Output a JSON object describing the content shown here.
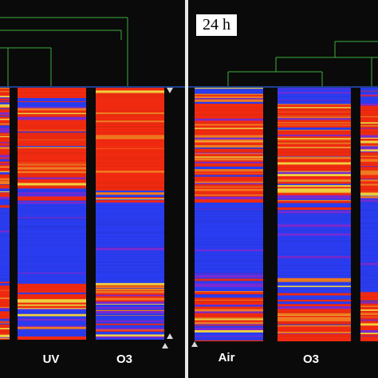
{
  "left_panel": {
    "lanes": [
      {
        "name": "",
        "profile": "partial_left"
      },
      {
        "name": "UV",
        "profile": "uv"
      },
      {
        "name": "O3",
        "profile": "o3_left"
      }
    ]
  },
  "right_panel": {
    "time_label": "24 h",
    "lanes": [
      {
        "name": "Air",
        "profile": "air"
      },
      {
        "name": "O3",
        "profile": "o3_right"
      },
      {
        "name": "",
        "profile": "partial_right"
      }
    ]
  },
  "colors": {
    "red": "#f02a10",
    "blue": "#2a3cf0",
    "orange": "#f07a20",
    "purple": "#7a2ad0",
    "yellow": "#f0d040",
    "background": "#0a0a0a",
    "dendrogram": "#3fae3f",
    "separator": "#1f3f8f"
  }
}
